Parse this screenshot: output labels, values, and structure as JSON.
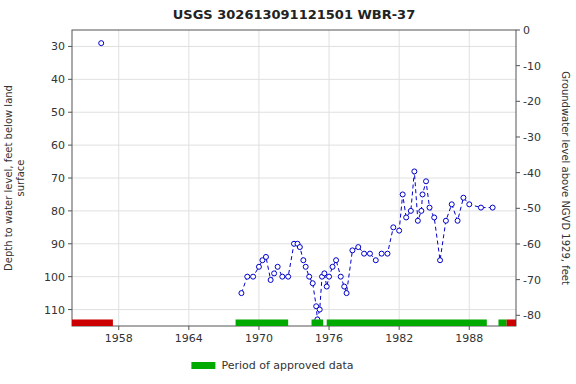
{
  "chart_data": {
    "type": "line",
    "title": "USGS 302613091121501 WBR-37",
    "ylabel": "Depth to water level, feet below land\nsurface",
    "y2label": "Groundwater level above NGVD 1929, feet",
    "xlim": [
      1954,
      1992
    ],
    "xticks": [
      1958,
      1964,
      1970,
      1976,
      1982,
      1988
    ],
    "ylim": [
      115,
      25
    ],
    "yticks": [
      30,
      40,
      50,
      60,
      70,
      80,
      90,
      100,
      110
    ],
    "y2lim": [
      -83,
      0
    ],
    "y2ticks": [
      0,
      -10,
      -20,
      -30,
      -40,
      -50,
      -60,
      -70,
      -80
    ],
    "grid": true,
    "series": [
      {
        "type": "line",
        "color": "#0000cc",
        "line_style": "dashed",
        "marker": "open-circle",
        "x": [
          1956.5,
          null,
          1968.5,
          1969.0,
          1969.5,
          1970.0,
          1970.3,
          1970.6,
          1971.0,
          1971.3,
          1971.6,
          1972.0,
          1972.5,
          1973.0,
          1973.3,
          1973.5,
          1973.8,
          1974.0,
          1974.3,
          1974.6,
          1974.9,
          1975.0,
          1975.2,
          1975.4,
          1975.6,
          1975.8,
          1976.0,
          1976.3,
          1976.6,
          1977.0,
          1977.3,
          1977.5,
          1978.0,
          1978.5,
          1979.0,
          1979.5,
          1980.0,
          1980.5,
          1981.0,
          1981.5,
          1982.0,
          1982.3,
          1982.6,
          1983.0,
          1983.3,
          1983.6,
          1983.9,
          1984.0,
          1984.3,
          1984.6,
          1985.0,
          1985.5,
          1986.0,
          1986.5,
          1987.0,
          1987.5,
          1988.0,
          1989.0,
          1990.0
        ],
        "values": [
          29,
          null,
          105,
          100,
          100,
          97,
          95,
          94,
          101,
          99,
          97,
          100,
          100,
          90,
          90,
          91,
          95,
          97,
          100,
          102,
          109,
          113,
          110,
          100,
          99,
          103,
          100,
          97,
          95,
          100,
          103,
          105,
          92,
          91,
          93,
          93,
          95,
          93,
          93,
          85,
          86,
          75,
          82,
          80,
          68,
          83,
          80,
          75,
          71,
          79,
          82,
          95,
          83,
          78,
          83,
          76,
          78,
          79,
          79
        ]
      },
      {
        "type": "band",
        "name": "Period of approved data",
        "color": "#00aa00",
        "ranges": [
          [
            1968.0,
            1972.5
          ],
          [
            1974.5,
            1975.5
          ],
          [
            1975.8,
            1989.5
          ],
          [
            1990.5,
            1991.2
          ]
        ]
      },
      {
        "type": "band",
        "color": "#cc0000",
        "ranges": [
          [
            1954.0,
            1957.5
          ],
          [
            1991.2,
            1992.0
          ]
        ]
      }
    ]
  }
}
